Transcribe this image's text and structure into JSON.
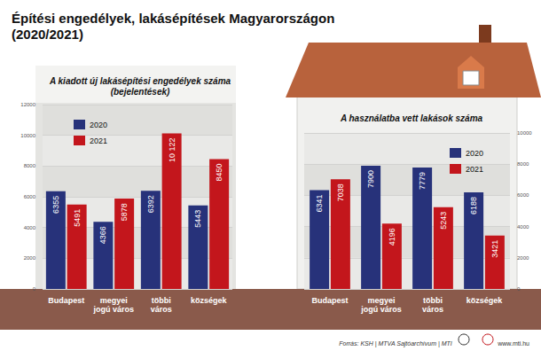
{
  "title": "Építési engedélyek, lakásépítések Magyarországon\n(2020/2021)",
  "source": "Forrás: KSH | MTVA Sajtóarchívum | MTI",
  "website": "www.mti.hu",
  "chart_data": [
    {
      "type": "bar",
      "title": "A kiadott új lakásépítési engedélyek száma\n(bejelentések)",
      "categories": [
        "Budapest",
        "megyei\njogú város",
        "többi\nváros",
        "községek"
      ],
      "series": [
        {
          "name": "2020",
          "color": "#27327a",
          "values": [
            6355,
            4366,
            6392,
            5443
          ],
          "value_labels": [
            "6355",
            "4366",
            "6392",
            "5443"
          ]
        },
        {
          "name": "2021",
          "color": "#c3161c",
          "values": [
            5491,
            5878,
            10122,
            8450
          ],
          "value_labels": [
            "5491",
            "5878",
            "10 122",
            "8450"
          ]
        }
      ],
      "ylim": [
        0,
        12000
      ],
      "yticks": [
        0,
        2000,
        4000,
        6000,
        8000,
        10000,
        12000
      ],
      "grid": true,
      "data_labels": true,
      "legend": "top-left"
    },
    {
      "type": "bar",
      "title": "A használatba vett lakások száma",
      "categories": [
        "Budapest",
        "megyei\njogú város",
        "többi\nváros",
        "községek"
      ],
      "series": [
        {
          "name": "2020",
          "color": "#27327a",
          "values": [
            6341,
            7900,
            7779,
            6188
          ],
          "value_labels": [
            "6341",
            "7900",
            "7779",
            "6188"
          ]
        },
        {
          "name": "2021",
          "color": "#c3161c",
          "values": [
            7038,
            4196,
            5243,
            3421
          ],
          "value_labels": [
            "7038",
            "4196",
            "5243",
            "3421"
          ]
        }
      ],
      "ylim": [
        0,
        10000
      ],
      "yticks": [
        0,
        2000,
        4000,
        6000,
        8000,
        10000
      ],
      "grid": true,
      "data_labels": true,
      "legend": "top-right"
    }
  ]
}
